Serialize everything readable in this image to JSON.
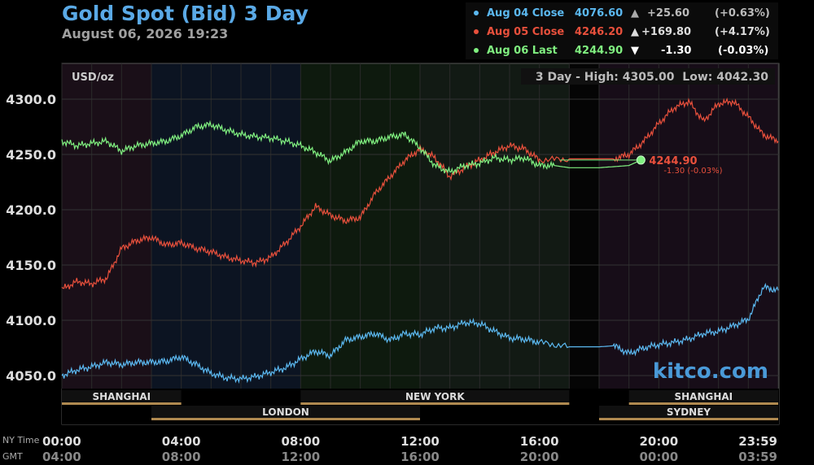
{
  "header": {
    "title": "Gold Spot (Bid) 3 Day",
    "subtitle": "August 06, 2026 19:23"
  },
  "legend": [
    {
      "label": "Aug 04 Close",
      "value": "4076.60",
      "arrow": "▲",
      "change": "+25.60",
      "pct": "(+0.63%)",
      "color": "#5bb8f0"
    },
    {
      "label": "Aug 05 Close",
      "value": "4246.20",
      "arrow": "▲",
      "change": "+169.80",
      "pct": "(+4.17%)",
      "color": "#e8503c"
    },
    {
      "label": "Aug 06 Last",
      "value": "4244.90",
      "arrow": "▼",
      "change": "-1.30",
      "pct": "(-0.03%)",
      "color": "#80f080"
    }
  ],
  "plot": {
    "unit": "USD/oz",
    "range_text": "3 Day - High: 4305.00  Low: 4042.30",
    "watermark": "kitco.com",
    "last_label": "4244.90",
    "last_change": "-1.30 (-0.03%)"
  },
  "sessions": [
    {
      "name": "SHANGHAI",
      "start": 0,
      "end": 4
    },
    {
      "name": "LONDON",
      "start": 3,
      "end": 12
    },
    {
      "name": "NEW YORK",
      "start": 8,
      "end": 17
    },
    {
      "name": "SHANGHAI",
      "start": 19,
      "end": 24
    },
    {
      "name": "SYDNEY",
      "start": 18,
      "end": 24
    }
  ],
  "axis_labels": {
    "ny_time": "NY Time",
    "gmt": "GMT"
  },
  "colors": {
    "aug04": "#5bb8f0",
    "aug05": "#e8503c",
    "aug06": "#80f080",
    "title": "#5aa9e6",
    "session_bar": "#b08a50"
  },
  "chart_data": {
    "type": "line",
    "title": "Gold Spot (Bid) 3 Day",
    "ylabel": "USD/oz",
    "xlabel": "",
    "ylim": [
      4042.3,
      4310
    ],
    "y_ticks": [
      "4050.0",
      "4100.0",
      "4150.0",
      "4200.0",
      "4250.0",
      "4300.0"
    ],
    "x_ticks_ny": [
      "00:00",
      "04:00",
      "08:00",
      "12:00",
      "16:00",
      "20:00",
      "23:59"
    ],
    "x_ticks_gmt": [
      "04:00",
      "08:00",
      "12:00",
      "16:00",
      "20:00",
      "00:00",
      "03:59"
    ],
    "x_unit": "hours (NY time)",
    "series": [
      {
        "name": "Aug 04 Close",
        "color": "#5bb8f0",
        "x": [
          0,
          0.5,
          1,
          1.5,
          2,
          2.5,
          3,
          3.5,
          4,
          4.5,
          5,
          5.5,
          6,
          6.5,
          7,
          7.5,
          8,
          8.5,
          9,
          9.5,
          10,
          10.5,
          11,
          11.5,
          12,
          12.5,
          13,
          13.5,
          14,
          14.5,
          15,
          15.5,
          16,
          17,
          18,
          18.5,
          19,
          19.5,
          20,
          20.5,
          21,
          21.5,
          22,
          22.5,
          23,
          23.5,
          24
        ],
        "y": [
          4050,
          4055,
          4058,
          4062,
          4060,
          4062,
          4062,
          4063,
          4067,
          4060,
          4052,
          4048,
          4047,
          4049,
          4053,
          4057,
          4065,
          4072,
          4068,
          4082,
          4085,
          4088,
          4082,
          4088,
          4087,
          4093,
          4093,
          4098,
          4097,
          4090,
          4084,
          4083,
          4080,
          4076,
          4076,
          4077,
          4070,
          4075,
          4078,
          4080,
          4083,
          4088,
          4090,
          4095,
          4101,
          4130,
          4127
        ]
      },
      {
        "name": "Aug 05 Close",
        "color": "#e8503c",
        "x": [
          0,
          0.5,
          1,
          1.5,
          2,
          2.5,
          3,
          3.5,
          4,
          4.5,
          5,
          5.5,
          6,
          6.5,
          7,
          7.5,
          8,
          8.5,
          9,
          9.5,
          10,
          10.5,
          11,
          11.5,
          12,
          12.5,
          13,
          13.5,
          14,
          14.5,
          15,
          15.5,
          16,
          17,
          18,
          18.5,
          19,
          19.5,
          20,
          20.5,
          21,
          21.5,
          22,
          22.5,
          23,
          23.5,
          24
        ],
        "y": [
          4128,
          4135,
          4133,
          4138,
          4165,
          4172,
          4175,
          4168,
          4170,
          4165,
          4162,
          4157,
          4154,
          4152,
          4157,
          4170,
          4185,
          4203,
          4195,
          4190,
          4193,
          4215,
          4230,
          4245,
          4255,
          4247,
          4230,
          4238,
          4245,
          4252,
          4258,
          4255,
          4245,
          4246,
          4246,
          4246,
          4250,
          4262,
          4278,
          4292,
          4298,
          4280,
          4296,
          4298,
          4284,
          4268,
          4262
        ]
      },
      {
        "name": "Aug 06 Last",
        "color": "#80f080",
        "x": [
          0,
          0.5,
          1,
          1.5,
          2,
          2.5,
          3,
          3.5,
          4,
          4.5,
          5,
          5.5,
          6,
          6.5,
          7,
          7.5,
          8,
          8.5,
          9,
          9.5,
          10,
          10.5,
          11,
          11.5,
          12,
          12.5,
          13,
          13.5,
          14,
          14.5,
          15,
          15.5,
          16,
          16.5,
          17,
          18,
          18.5,
          19,
          19.4
        ],
        "y": [
          4262,
          4258,
          4260,
          4262,
          4253,
          4258,
          4260,
          4262,
          4267,
          4275,
          4277,
          4272,
          4268,
          4266,
          4265,
          4262,
          4258,
          4252,
          4244,
          4252,
          4262,
          4262,
          4266,
          4268,
          4256,
          4240,
          4234,
          4240,
          4242,
          4247,
          4245,
          4247,
          4240,
          4240,
          4238,
          4238,
          4239,
          4240,
          4244.9
        ]
      }
    ]
  }
}
